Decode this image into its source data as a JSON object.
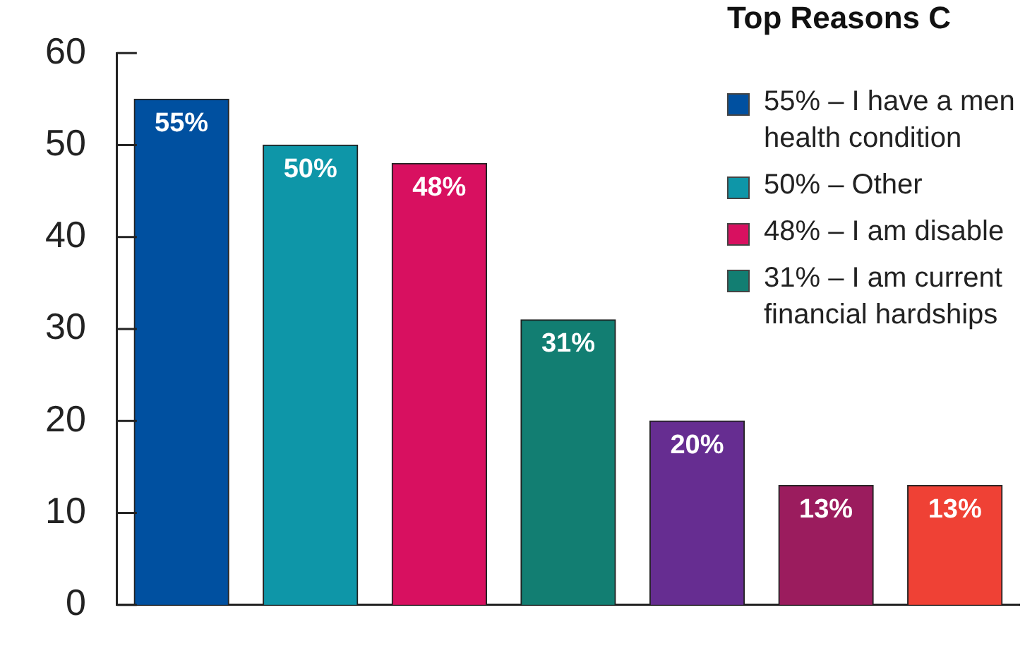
{
  "chart_data": {
    "type": "bar",
    "title": "Top Reasons C",
    "categories": [
      null,
      null,
      null,
      null,
      null,
      null,
      null
    ],
    "series": [
      {
        "name": "55% – I have a men health condition",
        "color": "#0050a0",
        "values": [
          55,
          null,
          null,
          null,
          null,
          null,
          null
        ],
        "value_labels": [
          "55%",
          null,
          null,
          null,
          null,
          null,
          null
        ]
      },
      {
        "name": "50% – Other",
        "color": "#0e96a8",
        "values": [
          null,
          50,
          null,
          null,
          null,
          null,
          null
        ],
        "value_labels": [
          null,
          "50%",
          null,
          null,
          null,
          null,
          null
        ]
      },
      {
        "name": "48% – I am disable",
        "color": "#d81060",
        "values": [
          null,
          null,
          48,
          null,
          null,
          null,
          null
        ],
        "value_labels": [
          null,
          null,
          "48%",
          null,
          null,
          null,
          null
        ]
      },
      {
        "name": "31% – I am current financial hardships",
        "color": "#127e72",
        "values": [
          null,
          null,
          null,
          31,
          null,
          null,
          null
        ],
        "value_labels": [
          null,
          null,
          null,
          "31%",
          null,
          null,
          null
        ]
      },
      {
        "color": "#662d91",
        "values": [
          null,
          null,
          null,
          null,
          20,
          null,
          null
        ],
        "value_labels": [
          null,
          null,
          null,
          null,
          "20%",
          null,
          null
        ]
      },
      {
        "color": "#9b1c5e",
        "values": [
          null,
          null,
          null,
          null,
          null,
          13,
          null
        ],
        "value_labels": [
          null,
          null,
          null,
          null,
          null,
          "13%",
          null
        ]
      },
      {
        "color": "#ef4135",
        "values": [
          null,
          null,
          null,
          null,
          null,
          null,
          13
        ],
        "value_labels": [
          null,
          null,
          null,
          null,
          null,
          null,
          "13%"
        ]
      }
    ],
    "ylim": [
      0,
      60
    ],
    "yticks": [
      0,
      10,
      20,
      30,
      40,
      50,
      60
    ],
    "grid": false,
    "legend": "top right"
  }
}
